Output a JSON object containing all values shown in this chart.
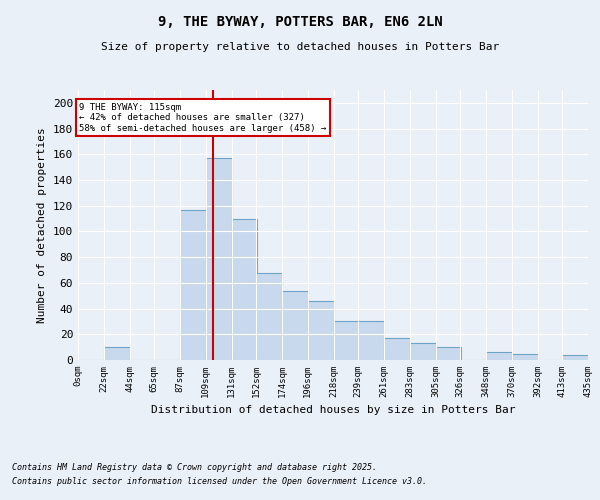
{
  "title": "9, THE BYWAY, POTTERS BAR, EN6 2LN",
  "subtitle": "Size of property relative to detached houses in Potters Bar",
  "xlabel": "Distribution of detached houses by size in Potters Bar",
  "ylabel": "Number of detached properties",
  "bar_color": "#c9d9ed",
  "bar_edge_color": "#6ea3c8",
  "background_color": "#eaf0f8",
  "grid_color": "#ffffff",
  "annotation_box_color": "#cc0000",
  "property_line_color": "#cc0000",
  "property_value": 115,
  "property_label": "9 THE BYWAY: 115sqm",
  "annotation_line1": "← 42% of detached houses are smaller (327)",
  "annotation_line2": "58% of semi-detached houses are larger (458) →",
  "footnote1": "Contains HM Land Registry data © Crown copyright and database right 2025.",
  "footnote2": "Contains public sector information licensed under the Open Government Licence v3.0.",
  "bin_starts": [
    0,
    22,
    44,
    65,
    87,
    109,
    131,
    152,
    174,
    196,
    218,
    239,
    261,
    283,
    305,
    326,
    348,
    370,
    392,
    413
  ],
  "bin_width": 22,
  "bar_heights": [
    0,
    10,
    0,
    0,
    117,
    157,
    110,
    68,
    54,
    46,
    30,
    30,
    17,
    13,
    10,
    0,
    6,
    5,
    0,
    4
  ],
  "ylim": [
    0,
    210
  ],
  "yticks": [
    0,
    20,
    40,
    60,
    80,
    100,
    120,
    140,
    160,
    180,
    200
  ],
  "xtick_labels": [
    "0sqm",
    "22sqm",
    "44sqm",
    "65sqm",
    "87sqm",
    "109sqm",
    "131sqm",
    "152sqm",
    "174sqm",
    "196sqm",
    "218sqm",
    "239sqm",
    "261sqm",
    "283sqm",
    "305sqm",
    "326sqm",
    "348sqm",
    "370sqm",
    "392sqm",
    "413sqm",
    "435sqm"
  ]
}
